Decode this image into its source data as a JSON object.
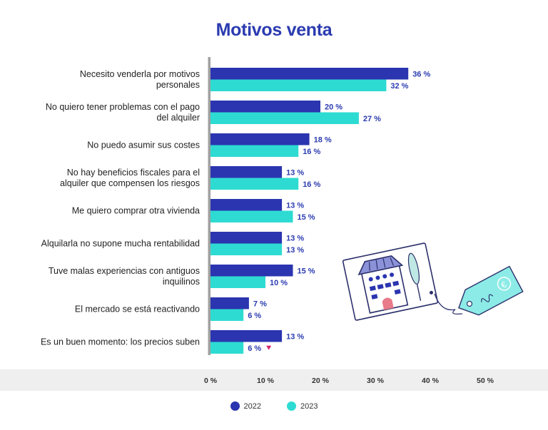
{
  "title": "Motivos venta",
  "colors": {
    "series_2022": "#2b35b0",
    "series_2023": "#2edbd2",
    "axis": "#a0a0a0",
    "band": "#efefef",
    "down_marker": "#d6246e"
  },
  "chart_data": {
    "type": "bar",
    "orientation": "horizontal",
    "title": "Motivos venta",
    "categories": [
      "Necesito venderla por motivos personales",
      "No quiero tener problemas con el pago del alquiler",
      "No puedo asumir sus costes",
      "No hay beneficios fiscales para el alquiler que compensen los riesgos",
      "Me quiero comprar otra vivienda",
      "Alquilarla no supone mucha rentabilidad",
      "Tuve malas experiencias con antiguos inquilinos",
      "El mercado se está reactivando",
      "Es un buen momento: los precios suben"
    ],
    "category_lines": [
      [
        "Necesito venderla por motivos",
        "personales"
      ],
      [
        "No quiero tener problemas con el pago",
        "del alquiler"
      ],
      [
        "No puedo asumir sus costes"
      ],
      [
        "No hay beneficios fiscales para el",
        "alquiler que compensen los riesgos"
      ],
      [
        "Me quiero comprar otra vivienda"
      ],
      [
        "Alquilarla no supone mucha rentabilidad"
      ],
      [
        "Tuve malas experiencias con antiguos",
        "inquilinos"
      ],
      [
        "El mercado se está reactivando"
      ],
      [
        "Es un buen momento: los precios suben"
      ]
    ],
    "series": [
      {
        "name": "2022",
        "values": [
          36,
          20,
          18,
          13,
          13,
          13,
          15,
          7,
          13
        ]
      },
      {
        "name": "2023",
        "values": [
          32,
          27,
          16,
          16,
          15,
          13,
          10,
          6,
          6
        ]
      }
    ],
    "value_labels": [
      [
        "36 %",
        "20 %",
        "18 %",
        "13 %",
        "13 %",
        "13 %",
        "15 %",
        "7 %",
        "13 %"
      ],
      [
        "32 %",
        "27 %",
        "16 %",
        "16 %",
        "15 %",
        "13 %",
        "10 %",
        "6 %",
        "6 %"
      ]
    ],
    "xlim": [
      0,
      50
    ],
    "xticks": [
      0,
      10,
      20,
      30,
      40,
      50
    ],
    "xtick_labels": [
      "0 %",
      "10 %",
      "20 %",
      "30 %",
      "40 %",
      "50 %"
    ],
    "legend": [
      "2022",
      "2023"
    ],
    "legend_position": "bottom",
    "grid": false,
    "down_marker": {
      "category_index": 8,
      "series_index": 1
    }
  },
  "decoration": {
    "euro_symbol": "€"
  }
}
